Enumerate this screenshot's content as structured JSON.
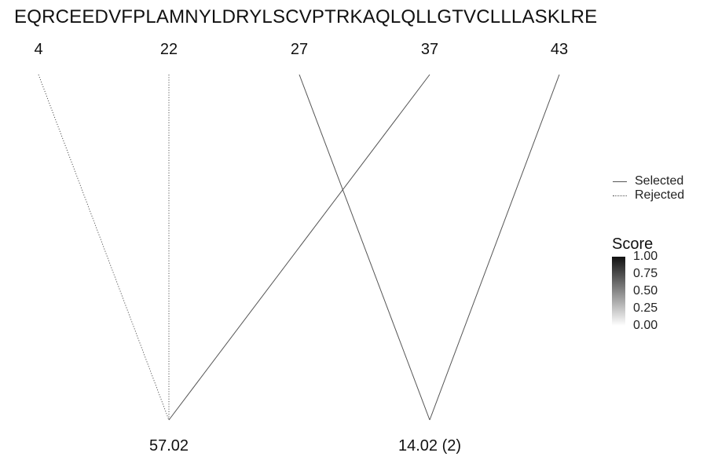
{
  "sequence": "EQRCEEDVFPLAMNYLDRYLSCVPTRKAQLQLLGTVCLLLASKLRE",
  "chart_data": {
    "type": "line",
    "positions": [
      "4",
      "22",
      "27",
      "37",
      "43"
    ],
    "masses": [
      "57.02",
      "14.02 (2)"
    ],
    "connections": [
      {
        "position": "4",
        "mass": "57.02",
        "status": "Rejected"
      },
      {
        "position": "22",
        "mass": "57.02",
        "status": "Rejected"
      },
      {
        "position": "37",
        "mass": "57.02",
        "status": "Selected"
      },
      {
        "position": "27",
        "mass": "14.02 (2)",
        "status": "Selected"
      },
      {
        "position": "43",
        "mass": "14.02 (2)",
        "status": "Selected"
      }
    ],
    "legend": {
      "linetype": [
        "Selected",
        "Rejected"
      ],
      "score_title": "Score",
      "score_ticks": [
        "1.00",
        "0.75",
        "0.50",
        "0.25",
        "0.00"
      ],
      "score_range": [
        0,
        1
      ],
      "placement": "right"
    },
    "colors": {
      "line": "#555555",
      "bar_high": "#111111",
      "bar_low": "#ffffff"
    }
  }
}
